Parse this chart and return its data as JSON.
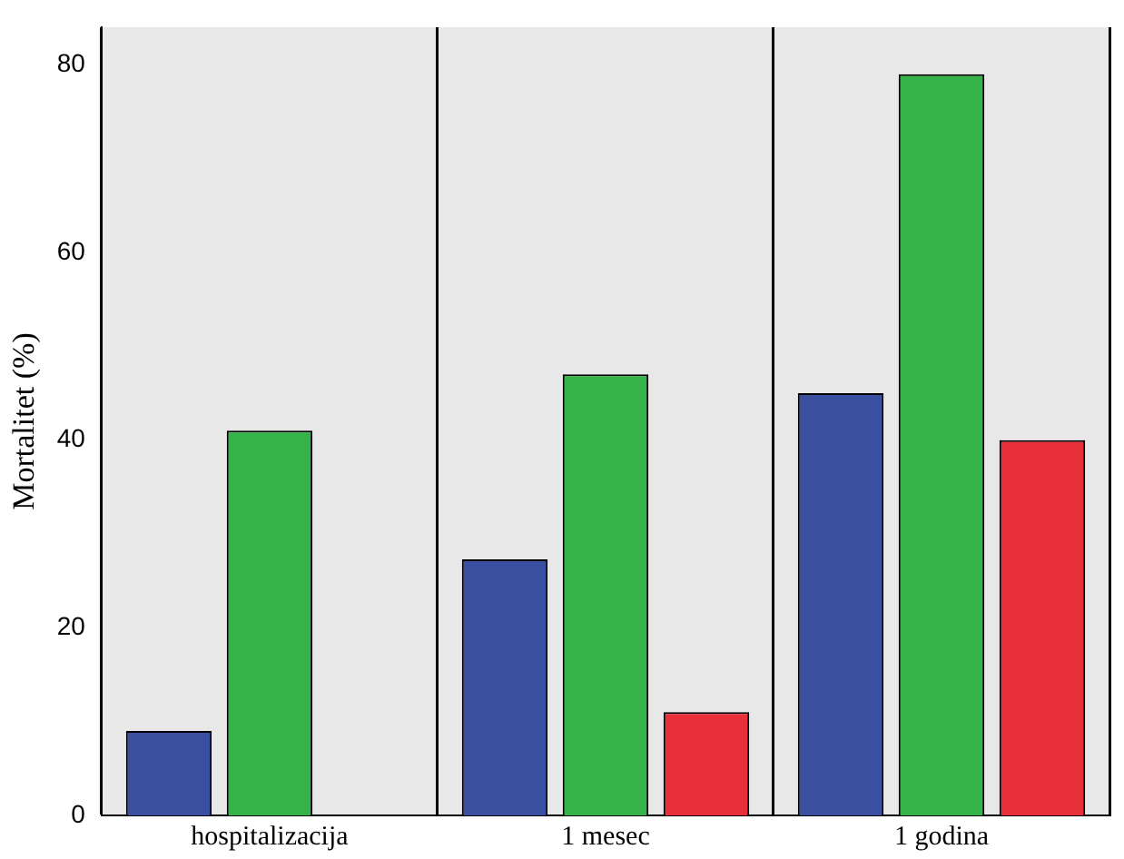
{
  "chart_data": {
    "type": "bar",
    "ylabel": "Mortalitet (%)",
    "categories": [
      "hospitalizacija",
      "1 mesec",
      "1 godina"
    ],
    "series": [
      {
        "color": "#3a4fa0",
        "values": [
          9,
          27.3,
          45
        ]
      },
      {
        "color": "#35b34a",
        "values": [
          41,
          47,
          79
        ]
      },
      {
        "color": "#e8303a",
        "values": [
          null,
          11,
          40
        ]
      }
    ],
    "ylim": [
      0,
      84
    ],
    "yticks": [
      0,
      20,
      40,
      60,
      80
    ],
    "grid": "x",
    "legend": false
  }
}
